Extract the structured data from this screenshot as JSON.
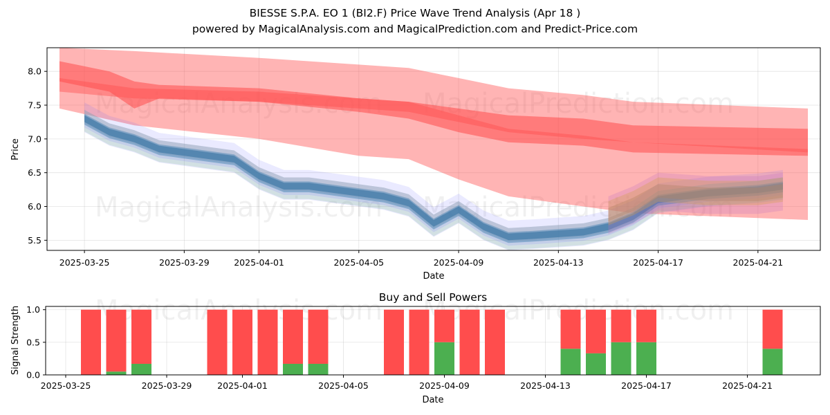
{
  "title_line1": "BIESSE S.P.A.  EO 1 (BI2.F) Price Wave Trend Analysis (Apr 18 )",
  "title_line2": "powered by MagicalAnalysis.com and MagicalPrediction.com and Predict-Price.com",
  "watermarks": [
    "MagicalAnalysis.com",
    "MagicalPrediction.com"
  ],
  "colors": {
    "red_band": "#ff4d4d",
    "green_bar": "#4caf50",
    "red_bar": "#ff4d4d"
  },
  "chart_data": [
    {
      "type": "area",
      "xlabel": "Date",
      "ylabel": "Price",
      "xlim": [
        "2025-03-23 12:00",
        "2025-04-23 12:00"
      ],
      "ylim": [
        5.35,
        8.35
      ],
      "x_ticks": [
        "2025-03-25",
        "2025-03-29",
        "2025-04-01",
        "2025-04-05",
        "2025-04-09",
        "2025-04-13",
        "2025-04-17",
        "2025-04-21"
      ],
      "y_ticks": [
        5.5,
        6.0,
        6.5,
        7.0,
        7.5,
        8.0
      ],
      "grid": true,
      "red_bands": [
        {
          "name": "",
          "x": [
            "2025-03-24",
            "2025-03-27",
            "2025-04-01",
            "2025-04-05",
            "2025-04-07",
            "2025-04-09",
            "2025-04-11",
            "2025-04-14",
            "2025-04-16",
            "2025-04-23"
          ],
          "upper": [
            8.35,
            8.3,
            8.2,
            8.1,
            8.05,
            7.9,
            7.75,
            7.65,
            7.55,
            7.45
          ],
          "lower": [
            7.7,
            7.6,
            7.55,
            7.45,
            7.4,
            7.25,
            7.1,
            7.0,
            6.95,
            6.8
          ]
        },
        {
          "name": "",
          "x": [
            "2025-03-24",
            "2025-03-26",
            "2025-03-27",
            "2025-03-28",
            "2025-04-01",
            "2025-04-05",
            "2025-04-07",
            "2025-04-09",
            "2025-04-11",
            "2025-04-14",
            "2025-04-16",
            "2025-04-23"
          ],
          "upper": [
            8.15,
            8.0,
            7.85,
            7.8,
            7.75,
            7.6,
            7.55,
            7.45,
            7.35,
            7.3,
            7.2,
            7.15
          ],
          "lower": [
            7.85,
            7.7,
            7.45,
            7.6,
            7.55,
            7.4,
            7.3,
            7.1,
            6.95,
            6.9,
            6.8,
            6.75
          ]
        },
        {
          "name": "",
          "x": [
            "2025-03-24",
            "2025-03-27",
            "2025-04-01",
            "2025-04-05",
            "2025-04-07",
            "2025-04-09",
            "2025-04-11",
            "2025-04-14",
            "2025-04-16",
            "2025-04-23"
          ],
          "upper": [
            7.9,
            7.75,
            7.7,
            7.6,
            7.55,
            7.35,
            7.15,
            7.05,
            6.95,
            6.85
          ],
          "lower": [
            7.45,
            7.2,
            7.0,
            6.75,
            6.7,
            6.4,
            6.15,
            6.0,
            5.9,
            5.8
          ]
        }
      ],
      "price_bands": {
        "x": [
          "2025-03-25",
          "2025-03-26",
          "2025-03-27",
          "2025-03-28",
          "2025-03-29",
          "2025-03-31",
          "2025-04-01",
          "2025-04-02",
          "2025-04-03",
          "2025-04-04",
          "2025-04-06",
          "2025-04-07",
          "2025-04-08",
          "2025-04-09",
          "2025-04-10",
          "2025-04-11",
          "2025-04-12",
          "2025-04-14",
          "2025-04-15",
          "2025-04-16",
          "2025-04-17",
          "2025-04-19",
          "2025-04-21",
          "2025-04-22"
        ],
        "center": [
          7.3,
          7.1,
          7.0,
          6.85,
          6.8,
          6.7,
          6.45,
          6.3,
          6.3,
          6.25,
          6.15,
          6.05,
          5.75,
          5.95,
          5.7,
          5.55,
          5.57,
          5.62,
          5.7,
          5.85,
          6.1,
          6.2,
          6.25,
          6.3
        ]
      },
      "overlay_bands": {
        "x": [
          "2025-04-15",
          "2025-04-16",
          "2025-04-17",
          "2025-04-19",
          "2025-04-21",
          "2025-04-22"
        ],
        "center": [
          5.85,
          6.0,
          6.2,
          6.15,
          6.15,
          6.2
        ]
      }
    },
    {
      "type": "bar",
      "title": "Buy and Sell Powers",
      "xlabel": "Date",
      "ylabel": "Signal Strength",
      "ylim": [
        0,
        1.05
      ],
      "x_ticks": [
        "2025-03-25",
        "2025-03-29",
        "2025-04-01",
        "2025-04-05",
        "2025-04-09",
        "2025-04-13",
        "2025-04-17",
        "2025-04-21"
      ],
      "y_ticks": [
        0.0,
        0.5,
        1.0
      ],
      "grid": true,
      "dates": [
        "2025-03-26",
        "2025-03-27",
        "2025-03-28",
        "2025-03-31",
        "2025-04-01",
        "2025-04-02",
        "2025-04-03",
        "2025-04-04",
        "2025-04-07",
        "2025-04-08",
        "2025-04-09",
        "2025-04-10",
        "2025-04-11",
        "2025-04-14",
        "2025-04-15",
        "2025-04-16",
        "2025-04-17",
        "2025-04-22"
      ],
      "buy": [
        0.0,
        0.05,
        0.17,
        0.0,
        0.0,
        0.0,
        0.17,
        0.17,
        0.0,
        0.0,
        0.5,
        0.0,
        0.0,
        0.4,
        0.33,
        0.5,
        0.5,
        0.4
      ],
      "total": [
        1,
        1,
        1,
        1,
        1,
        1,
        1,
        1,
        1,
        1,
        1,
        1,
        1,
        1,
        1,
        1,
        1,
        1
      ]
    }
  ]
}
